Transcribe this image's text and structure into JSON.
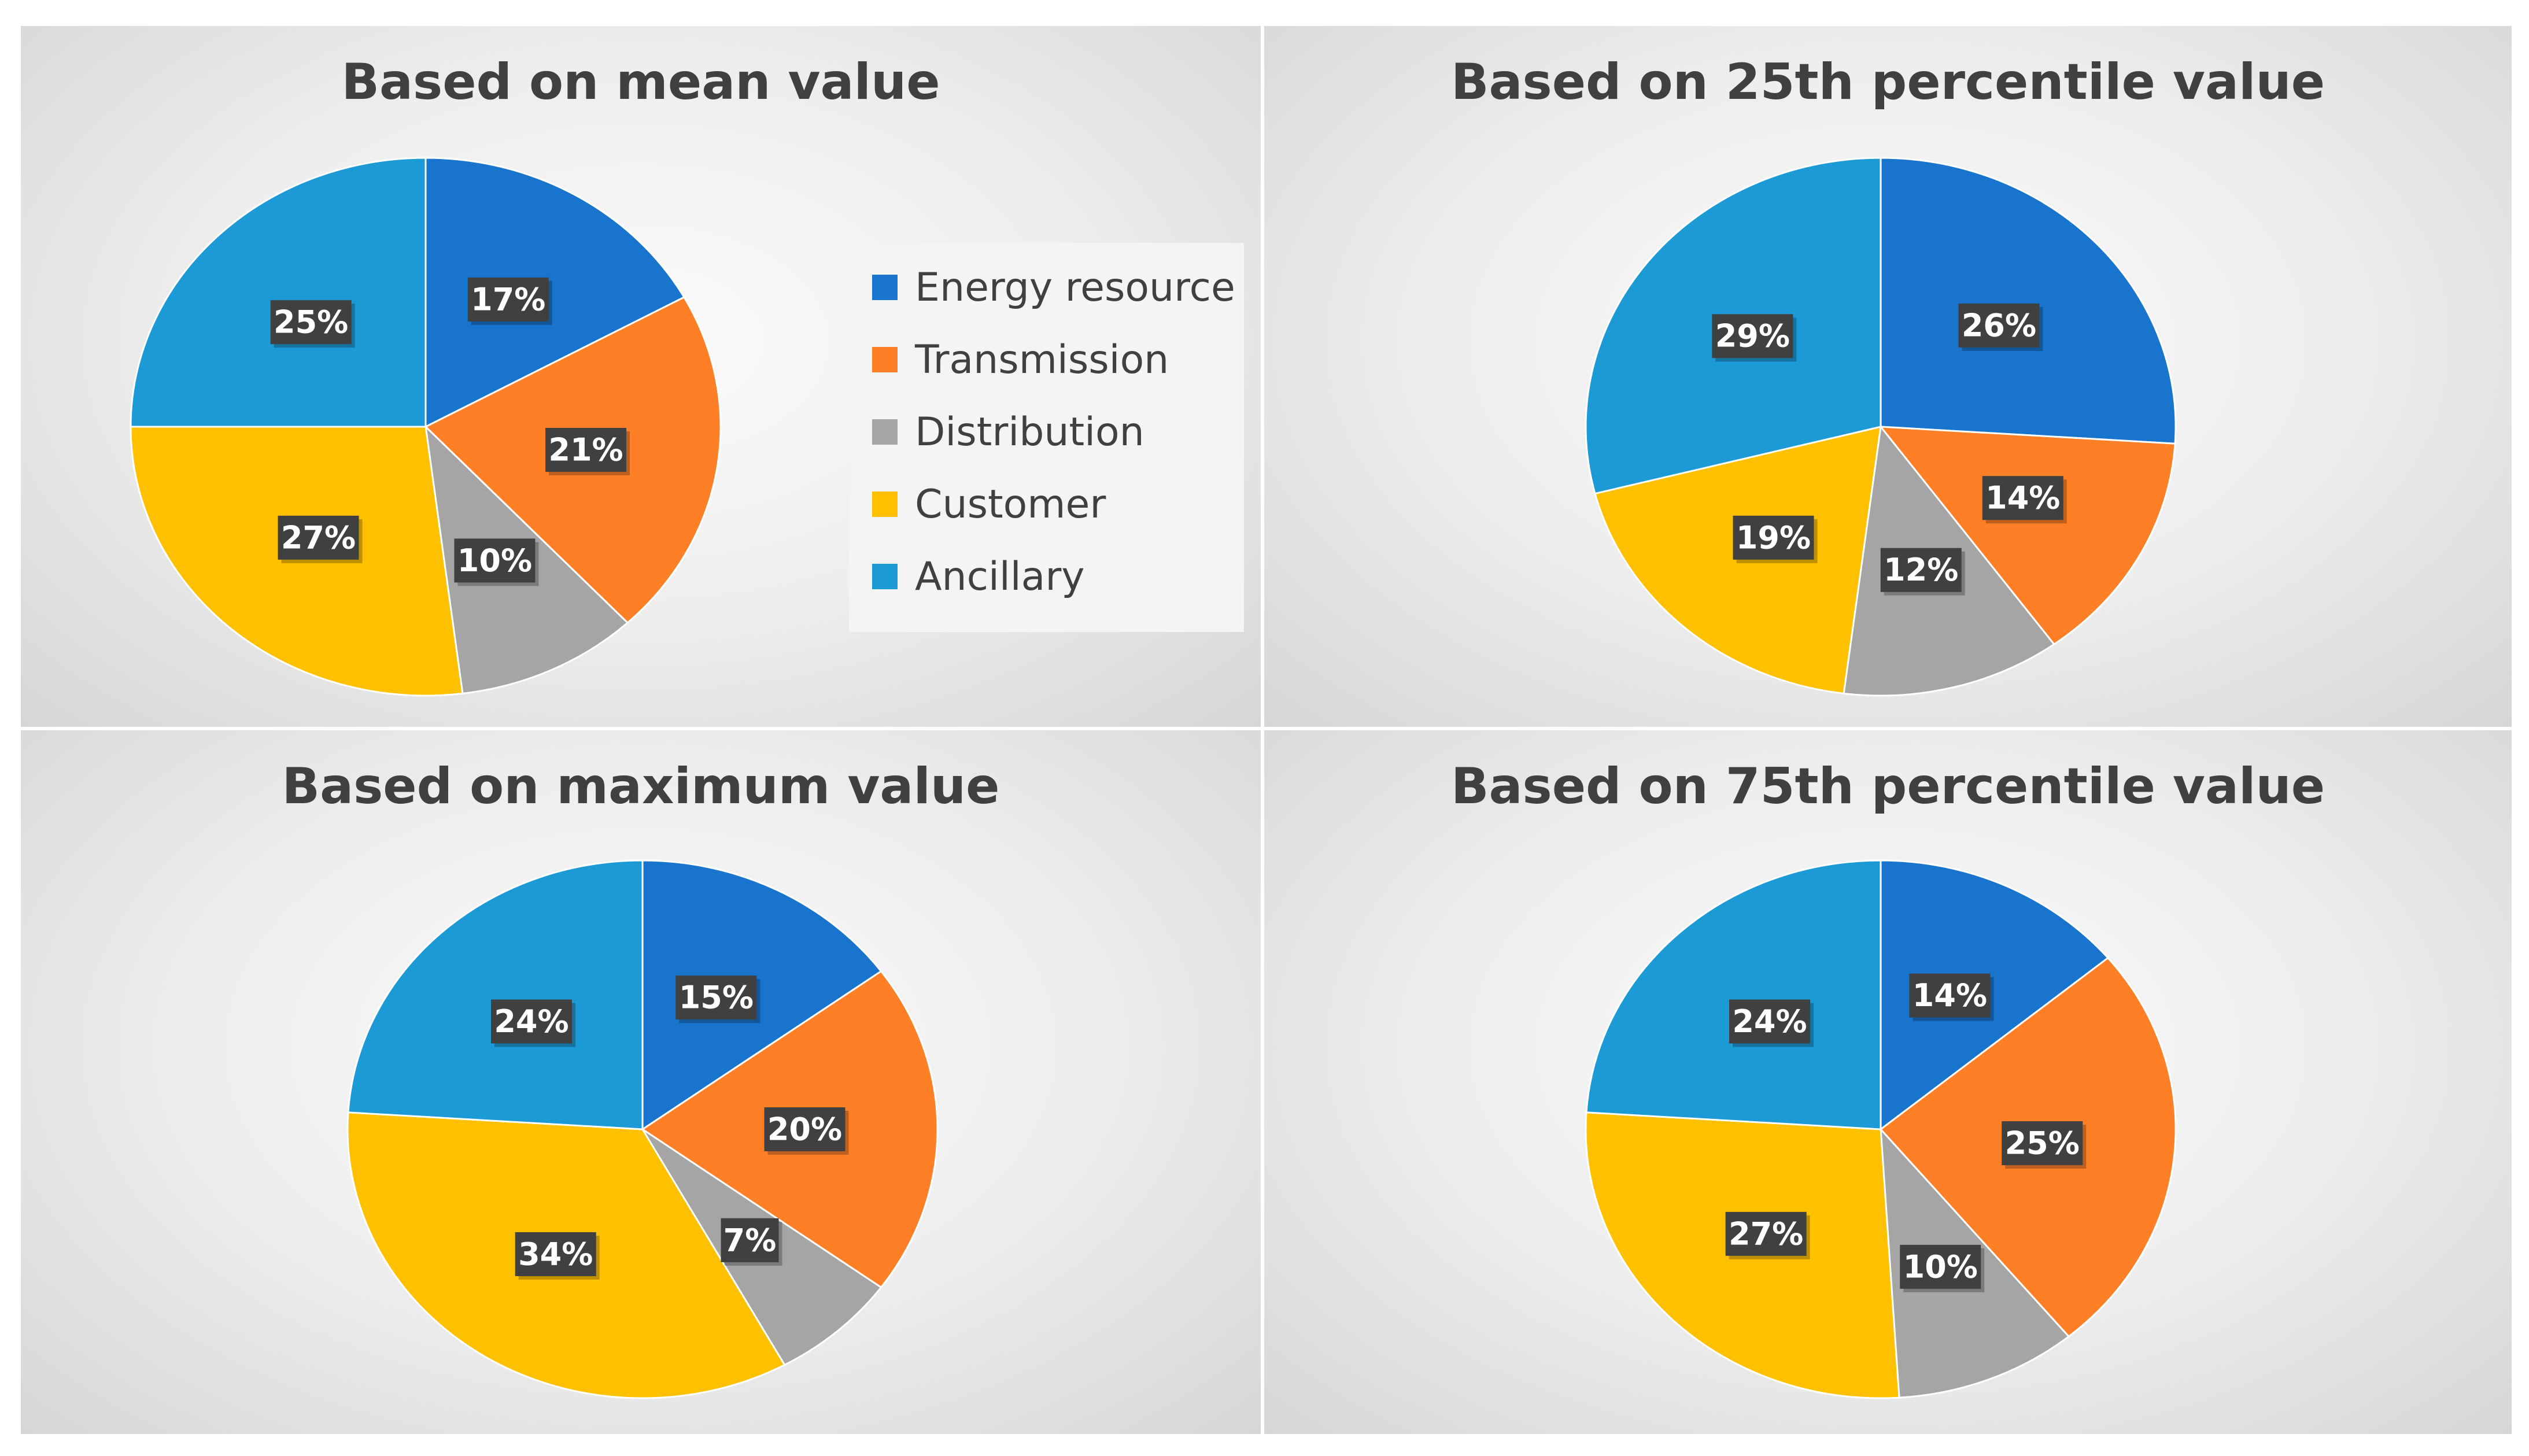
{
  "colors": {
    "Energy resource": "#1874cd",
    "Transmission": "#ff7f27",
    "Distribution": "#a5a5a5",
    "Customer": "#ffc000",
    "Ancillary": "#1b9ad6",
    "label_bg": "#404040",
    "label_text": "#ffffff"
  },
  "legend": {
    "items": [
      "Energy resource",
      "Transmission",
      "Distribution",
      "Customer",
      "Ancillary"
    ]
  },
  "chart_data": [
    {
      "type": "pie",
      "title": "Based on mean value",
      "categories": [
        "Energy resource",
        "Transmission",
        "Distribution",
        "Customer",
        "Ancillary"
      ],
      "values": [
        17,
        21,
        10,
        27,
        25
      ],
      "labels": [
        "17%",
        "21%",
        "10%",
        "27%",
        "25%"
      ]
    },
    {
      "type": "pie",
      "title": "Based on 25th percentile value",
      "categories": [
        "Energy resource",
        "Transmission",
        "Distribution",
        "Customer",
        "Ancillary"
      ],
      "values": [
        26,
        14,
        12,
        19,
        29
      ],
      "labels": [
        "26%",
        "14%",
        "12%",
        "19%",
        "29%"
      ]
    },
    {
      "type": "pie",
      "title": "Based on maximum value",
      "categories": [
        "Energy resource",
        "Transmission",
        "Distribution",
        "Customer",
        "Ancillary"
      ],
      "values": [
        15,
        20,
        7,
        34,
        24
      ],
      "labels": [
        "15%",
        "20%",
        "7%",
        "34%",
        "24%"
      ]
    },
    {
      "type": "pie",
      "title": "Based on 75th percentile value",
      "categories": [
        "Energy resource",
        "Transmission",
        "Distribution",
        "Customer",
        "Ancillary"
      ],
      "values": [
        14,
        25,
        10,
        27,
        24
      ],
      "labels": [
        "14%",
        "25%",
        "10%",
        "27%",
        "24%"
      ]
    }
  ]
}
